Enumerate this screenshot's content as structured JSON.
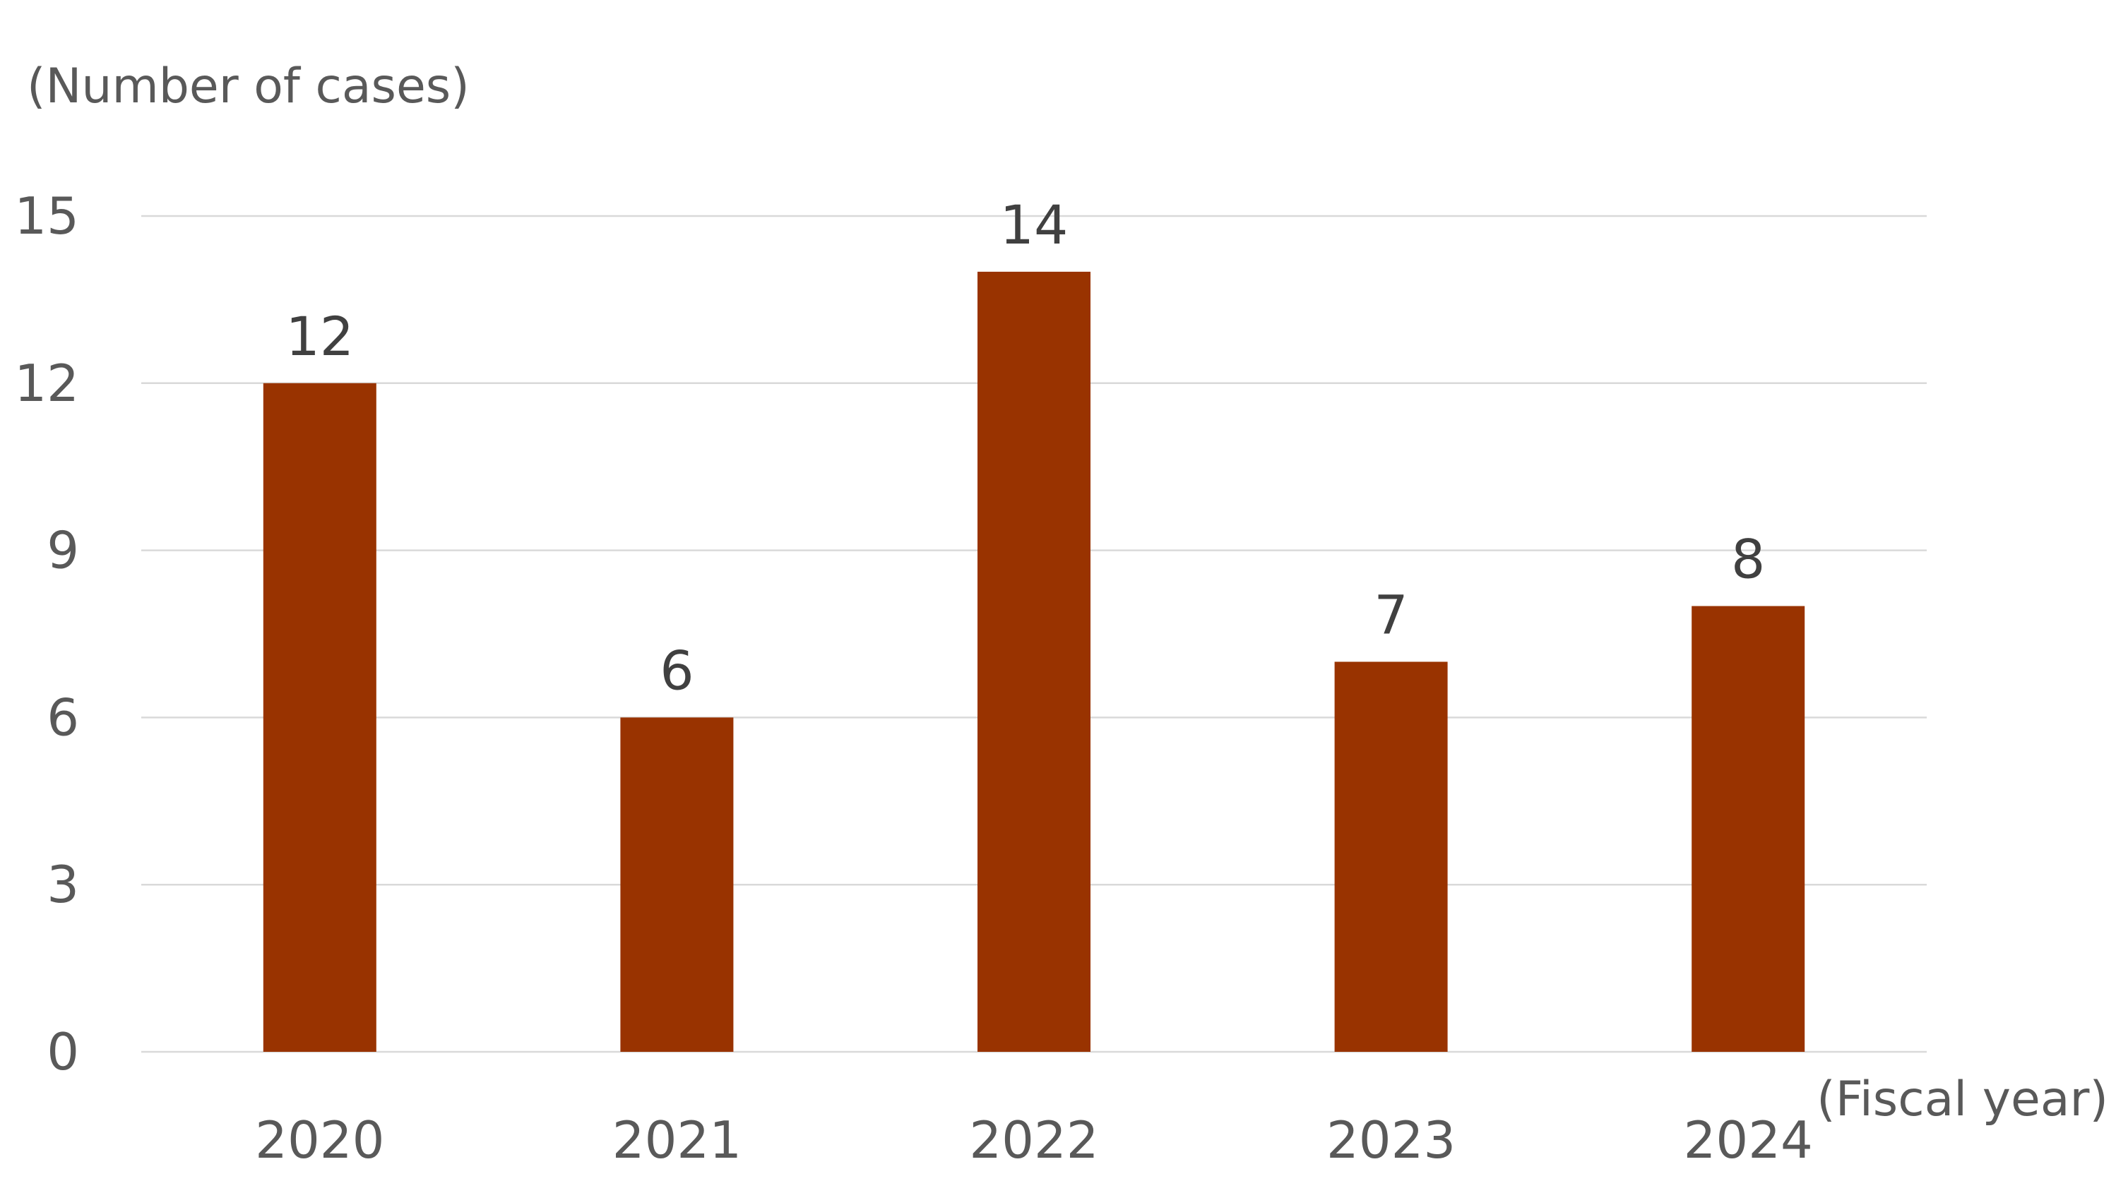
{
  "chart_data": {
    "type": "bar",
    "title": "",
    "ylabel": "(Number of cases)",
    "xlabel": "(Fiscal year)",
    "categories": [
      "2020",
      "2021",
      "2022",
      "2023",
      "2024"
    ],
    "series": [
      {
        "values": [
          12,
          6,
          14,
          7,
          8
        ]
      }
    ],
    "ylim": [
      0,
      15
    ],
    "yticks": [
      "0",
      "3",
      "6",
      "9",
      "12",
      "15"
    ],
    "grid": true,
    "legend": "none",
    "colors": {
      "bar": "#993300",
      "grid": "#d9d9d9",
      "tick_text": "#595959",
      "data_label_text": "#404040"
    }
  }
}
